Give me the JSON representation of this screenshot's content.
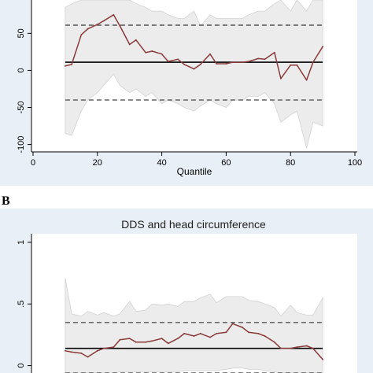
{
  "panel_b_letter": "B",
  "chart_data": [
    {
      "type": "line",
      "title": "",
      "xlabel": "Quantile",
      "ylabel": "",
      "xlim": [
        0,
        100
      ],
      "ylim": [
        -110,
        95
      ],
      "xticks": [
        0,
        20,
        40,
        60,
        80,
        100
      ],
      "yticks": [
        -100,
        -50,
        0,
        50
      ],
      "grid": false,
      "colors": {
        "line": "#8b3a3a",
        "band": "#ececec",
        "band_edge": "#d2d2d2",
        "ols": "#000000",
        "ci": "#555555",
        "bg": "#e9eff6"
      },
      "x": [
        10,
        12,
        15,
        17,
        20,
        22,
        25,
        27,
        30,
        32,
        35,
        37,
        40,
        42,
        45,
        47,
        50,
        52,
        55,
        57,
        60,
        62,
        65,
        67,
        70,
        72,
        75,
        77,
        80,
        82,
        85,
        87,
        90
      ],
      "series": [
        {
          "role": "quantile_estimate",
          "values": [
            6,
            8,
            48,
            56,
            62,
            67,
            75,
            60,
            35,
            41,
            24,
            26,
            22,
            12,
            15,
            8,
            2,
            8,
            22,
            9,
            9,
            11,
            11,
            12,
            16,
            15,
            24,
            -11,
            7,
            7,
            -13,
            11,
            32
          ]
        },
        {
          "role": "ci_lower",
          "values": [
            -85,
            -88,
            -55,
            -40,
            -30,
            -20,
            -5,
            -20,
            -30,
            -25,
            -35,
            -30,
            -45,
            -40,
            -45,
            -50,
            -55,
            -48,
            -40,
            -45,
            -50,
            -40,
            -40,
            -35,
            -35,
            -30,
            -45,
            -70,
            -60,
            -55,
            -105,
            -70,
            -75
          ]
        },
        {
          "role": "ci_upper",
          "values": [
            85,
            90,
            100,
            100,
            100,
            100,
            100,
            100,
            100,
            90,
            85,
            80,
            80,
            75,
            70,
            70,
            80,
            60,
            75,
            70,
            70,
            70,
            70,
            75,
            80,
            80,
            90,
            100,
            80,
            100,
            80,
            100,
            100
          ]
        }
      ],
      "ols_estimate": 11,
      "ols_ci": [
        -40,
        61
      ]
    },
    {
      "type": "line",
      "title": "DDS and head circumference",
      "xlabel": "",
      "ylabel": "",
      "xlim": [
        0,
        100
      ],
      "ylim": [
        0,
        1
      ],
      "yticks": [
        0,
        0.5,
        1
      ],
      "ytick_labels": [
        "0",
        ".5",
        "1"
      ],
      "grid": false,
      "colors": {
        "line": "#8b3a3a",
        "band": "#ececec",
        "band_edge": "#d2d2d2",
        "ols": "#000000",
        "ci": "#555555",
        "bg": "#e9eff6"
      },
      "x": [
        10,
        12,
        15,
        17,
        20,
        22,
        25,
        27,
        30,
        32,
        35,
        37,
        40,
        42,
        45,
        47,
        50,
        52,
        55,
        57,
        60,
        62,
        65,
        67,
        70,
        72,
        75,
        77,
        80,
        82,
        85,
        87,
        90
      ],
      "series": [
        {
          "role": "quantile_estimate",
          "values": [
            0.12,
            0.11,
            0.1,
            0.07,
            0.12,
            0.14,
            0.15,
            0.21,
            0.22,
            0.19,
            0.19,
            0.2,
            0.22,
            0.18,
            0.22,
            0.26,
            0.24,
            0.26,
            0.23,
            0.26,
            0.27,
            0.34,
            0.31,
            0.27,
            0.26,
            0.24,
            0.19,
            0.14,
            0.14,
            0.15,
            0.16,
            0.14,
            0.05
          ]
        },
        {
          "role": "ci_lower",
          "values": [
            -0.1,
            -0.1,
            -0.1,
            -0.1,
            -0.08,
            -0.08,
            -0.06,
            -0.05,
            -0.05,
            -0.05,
            -0.05,
            -0.05,
            -0.05,
            -0.05,
            -0.05,
            -0.04,
            -0.04,
            -0.04,
            -0.04,
            -0.04,
            -0.03,
            -0.02,
            -0.02,
            -0.03,
            -0.03,
            -0.04,
            -0.05,
            -0.06,
            -0.06,
            -0.06,
            -0.08,
            -0.08,
            -0.1
          ]
        },
        {
          "role": "ci_upper",
          "values": [
            0.71,
            0.42,
            0.4,
            0.44,
            0.41,
            0.43,
            0.4,
            0.42,
            0.52,
            0.44,
            0.45,
            0.5,
            0.49,
            0.5,
            0.48,
            0.52,
            0.52,
            0.55,
            0.58,
            0.51,
            0.56,
            0.56,
            0.56,
            0.53,
            0.52,
            0.5,
            0.47,
            0.4,
            0.49,
            0.43,
            0.41,
            0.41,
            0.55
          ]
        }
      ],
      "ols_estimate": 0.14,
      "ols_ci": [
        -0.07,
        0.35
      ]
    }
  ]
}
